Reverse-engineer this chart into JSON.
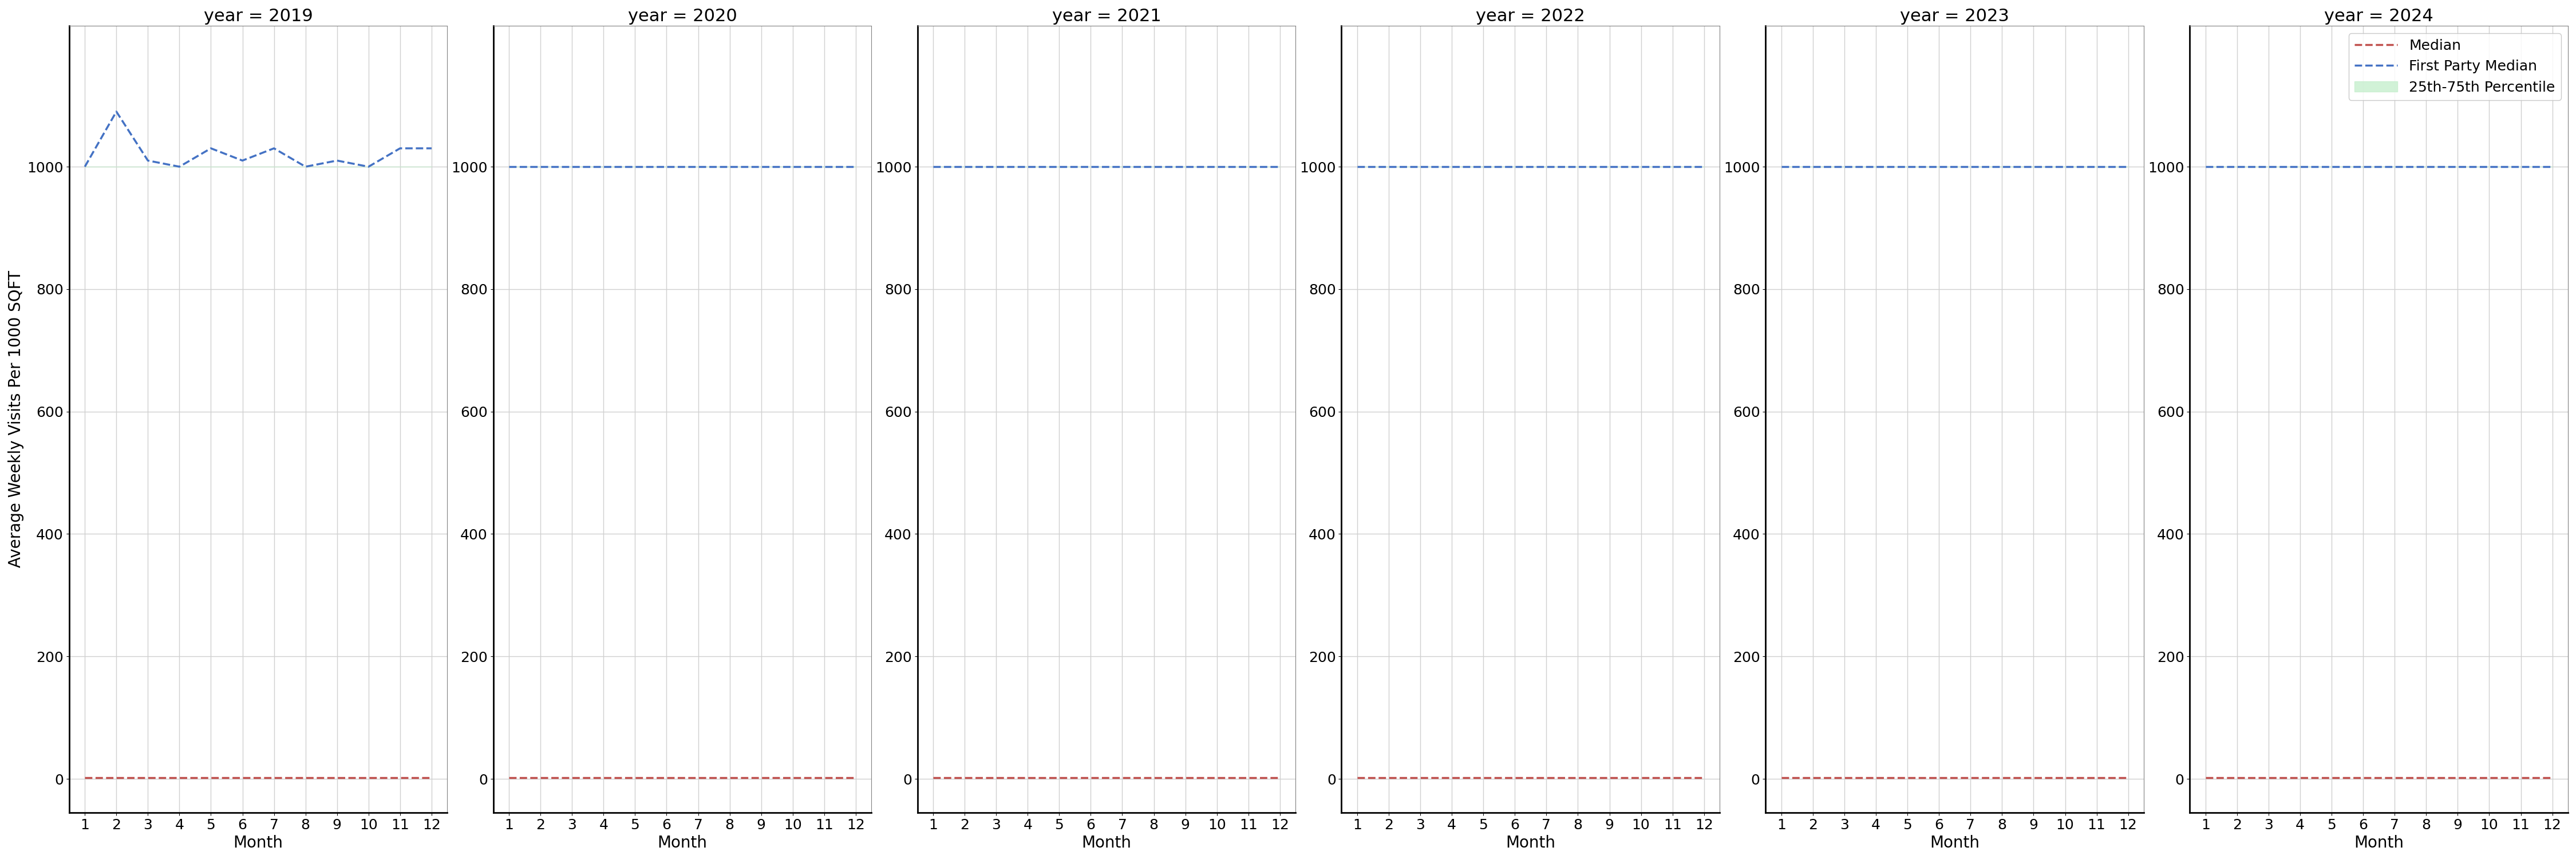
{
  "years": [
    2019,
    2020,
    2021,
    2022,
    2023,
    2024
  ],
  "months": [
    1,
    2,
    3,
    4,
    5,
    6,
    7,
    8,
    9,
    10,
    11,
    12
  ],
  "first_party_median": {
    "2019": [
      1000,
      1090,
      1010,
      1000,
      1030,
      1010,
      1030,
      1000,
      1010,
      1000,
      1030,
      1030
    ],
    "2020": [
      1000,
      1000,
      1000,
      1000,
      1000,
      1000,
      1000,
      1000,
      1000,
      1000,
      1000,
      1000
    ],
    "2021": [
      1000,
      1000,
      1000,
      1000,
      1000,
      1000,
      1000,
      1000,
      1000,
      1000,
      1000,
      1000
    ],
    "2022": [
      1000,
      1000,
      1000,
      1000,
      1000,
      1000,
      1000,
      1000,
      1000,
      1000,
      1000,
      1000
    ],
    "2023": [
      1000,
      1000,
      1000,
      1000,
      1000,
      1000,
      1000,
      1000,
      1000,
      1000,
      1000,
      1000
    ],
    "2024": [
      1000,
      1000,
      1000,
      1000,
      1000,
      1000,
      1000,
      1000,
      1000,
      1000,
      1000,
      1000
    ]
  },
  "median": {
    "2019": [
      2,
      2,
      2,
      2,
      2,
      2,
      2,
      2,
      2,
      2,
      2,
      2
    ],
    "2020": [
      2,
      2,
      2,
      2,
      2,
      2,
      2,
      2,
      2,
      2,
      2,
      2
    ],
    "2021": [
      2,
      2,
      2,
      2,
      2,
      2,
      2,
      2,
      2,
      2,
      2,
      2
    ],
    "2022": [
      2,
      2,
      2,
      2,
      2,
      2,
      2,
      2,
      2,
      2,
      2,
      2
    ],
    "2023": [
      2,
      2,
      2,
      2,
      2,
      2,
      2,
      2,
      2,
      2,
      2,
      2
    ],
    "2024": [
      2,
      2,
      2,
      2,
      2,
      2,
      2,
      2,
      2,
      2,
      2,
      2
    ]
  },
  "percentile_25": {
    "2019": [
      1000,
      1000,
      1000,
      1000,
      1000,
      1000,
      1000,
      1000,
      1000,
      1000,
      1000,
      1000
    ],
    "2020": [
      1000,
      1000,
      1000,
      1000,
      1000,
      1000,
      1000,
      1000,
      1000,
      1000,
      1000,
      1000
    ],
    "2021": [
      1000,
      1000,
      1000,
      1000,
      1000,
      1000,
      1000,
      1000,
      1000,
      1000,
      1000,
      1000
    ],
    "2022": [
      1000,
      1000,
      1000,
      1000,
      1000,
      1000,
      1000,
      1000,
      1000,
      1000,
      1000,
      1000
    ],
    "2023": [
      1000,
      1000,
      1000,
      1000,
      1000,
      1000,
      1000,
      1000,
      1000,
      1000,
      1000,
      1000
    ],
    "2024": [
      1000,
      1000,
      1000,
      1000,
      1000,
      1000,
      1000,
      1000,
      1000,
      1000,
      1000,
      1000
    ]
  },
  "percentile_75": {
    "2019": [
      1000,
      1000,
      1000,
      1000,
      1000,
      1000,
      1000,
      1000,
      1000,
      1000,
      1000,
      1000
    ],
    "2020": [
      1000,
      1000,
      1000,
      1000,
      1000,
      1000,
      1000,
      1000,
      1000,
      1000,
      1000,
      1000
    ],
    "2021": [
      1000,
      1000,
      1000,
      1000,
      1000,
      1000,
      1000,
      1000,
      1000,
      1000,
      1000,
      1000
    ],
    "2022": [
      1000,
      1000,
      1000,
      1000,
      1000,
      1000,
      1000,
      1000,
      1000,
      1000,
      1000,
      1000
    ],
    "2023": [
      1000,
      1000,
      1000,
      1000,
      1000,
      1000,
      1000,
      1000,
      1000,
      1000,
      1000,
      1000
    ],
    "2024": [
      1000,
      1000,
      1000,
      1000,
      1000,
      1000,
      1000,
      1000,
      1000,
      1000,
      1000,
      1000
    ]
  },
  "ylim": [
    -55,
    1230
  ],
  "yticks": [
    0,
    200,
    400,
    600,
    800,
    1000
  ],
  "xticks": [
    1,
    2,
    3,
    4,
    5,
    6,
    7,
    8,
    9,
    10,
    11,
    12
  ],
  "ylabel": "Average Weekly Visits Per 1000 SQFT",
  "xlabel": "Month",
  "first_party_color": "#4472c4",
  "median_color": "#c0504d",
  "percentile_color": "#c6efce",
  "background_color": "#ffffff",
  "grid_color": "#d0d0d0",
  "spine_color": "#808080",
  "title_fontsize": 22,
  "label_fontsize": 20,
  "tick_fontsize": 18,
  "legend_fontsize": 18,
  "legend_labels": [
    "Median",
    "First Party Median",
    "25th-75th Percentile"
  ]
}
